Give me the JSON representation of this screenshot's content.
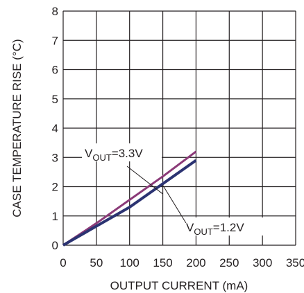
{
  "chart_data": {
    "type": "line",
    "title": "",
    "xlabel": "OUTPUT CURRENT (mA)",
    "ylabel": "CASE TEMPERATURE RISE (°C)",
    "xlim": [
      0,
      350
    ],
    "ylim": [
      0,
      8
    ],
    "xticks": [
      "0",
      "50",
      "100",
      "150",
      "200",
      "250",
      "300",
      "350"
    ],
    "yticks": [
      "0",
      "1",
      "2",
      "3",
      "4",
      "5",
      "6",
      "7",
      "8"
    ],
    "grid": true,
    "legend": "none",
    "series": [
      {
        "name": "VOUT=3.3V",
        "color": "#8b3a78",
        "x": [
          0,
          50,
          100,
          150,
          200
        ],
        "y": [
          0,
          0.75,
          1.55,
          2.35,
          3.2
        ]
      },
      {
        "name": "VOUT=1.2V",
        "color": "#2b3372",
        "x": [
          0,
          50,
          100,
          150,
          200
        ],
        "y": [
          0,
          0.65,
          1.3,
          2.1,
          2.9
        ]
      }
    ],
    "annotations": [
      {
        "main": "V",
        "sub": "OUT",
        "rest": "=3.3V",
        "series": 0
      },
      {
        "main": "V",
        "sub": "OUT",
        "rest": "=1.2V",
        "series": 1
      }
    ]
  }
}
